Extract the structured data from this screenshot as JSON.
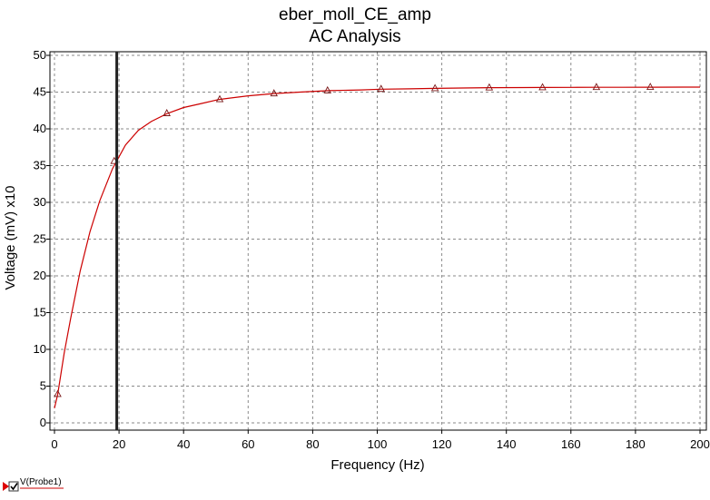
{
  "chart_data": {
    "type": "line",
    "title": "eber_moll_CE_amp",
    "subtitle": "AC Analysis",
    "xlabel": "Frequency (Hz)",
    "ylabel": "Voltage (mV) x10",
    "xlim": [
      0,
      200
    ],
    "ylim": [
      0,
      50
    ],
    "xticks": [
      0,
      20,
      40,
      60,
      80,
      100,
      120,
      140,
      160,
      180,
      200
    ],
    "yticks": [
      0,
      5,
      10,
      15,
      20,
      25,
      30,
      35,
      40,
      45,
      50
    ],
    "grid": true,
    "cursor_x": 19.3,
    "series": [
      {
        "name": "V(Probe1)",
        "color": "#cc0000",
        "marker_color": "#7a1a1a",
        "x": [
          0,
          1,
          3,
          5,
          8,
          11,
          14,
          18,
          22,
          26,
          30,
          35,
          40,
          45,
          51,
          60,
          68,
          76,
          85,
          95,
          101,
          110,
          118,
          126,
          135,
          145,
          151,
          160,
          168,
          176,
          185,
          195,
          200
        ],
        "values": [
          2.0,
          3.9,
          9.5,
          14.2,
          20.7,
          26.0,
          30.2,
          34.6,
          37.8,
          39.8,
          41.0,
          42.1,
          42.9,
          43.4,
          44.0,
          44.5,
          44.8,
          45.0,
          45.2,
          45.3,
          45.4,
          45.45,
          45.5,
          45.55,
          45.6,
          45.62,
          45.63,
          45.64,
          45.65,
          45.66,
          45.67,
          45.68,
          45.68
        ],
        "markers_x": [
          1,
          18.5,
          34.8,
          51.2,
          68,
          84.6,
          101.2,
          117.9,
          134.7,
          151.2,
          167.9,
          184.6
        ],
        "markers_y": [
          3.9,
          35.6,
          42.1,
          44.0,
          44.8,
          45.2,
          45.4,
          45.5,
          45.6,
          45.63,
          45.65,
          45.67
        ]
      }
    ],
    "legend": {
      "placement": "bottom-left",
      "label": "V(Probe1)",
      "checked": true
    }
  }
}
